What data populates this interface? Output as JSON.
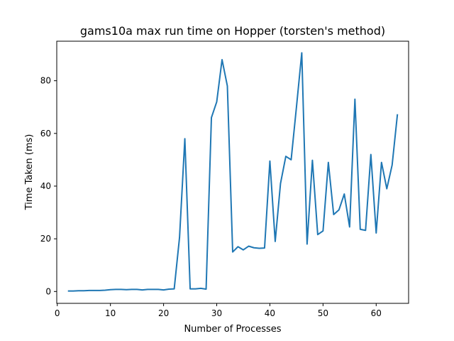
{
  "chart_data": {
    "type": "line",
    "title": "gams10a max run time on Hopper (torsten's method)",
    "xlabel": "Number of Processes",
    "ylabel": "Time Taken (ms)",
    "xlim": [
      -0.1,
      66.1
    ],
    "ylim": [
      -4.5,
      95.0
    ],
    "xticks": [
      0,
      10,
      20,
      30,
      40,
      50,
      60
    ],
    "yticks": [
      0,
      20,
      40,
      60,
      80
    ],
    "grid": false,
    "line_color": "#1f77b4",
    "series": [
      {
        "x": [
          2,
          3,
          4,
          5,
          6,
          7,
          8,
          9,
          10,
          11,
          12,
          13,
          14,
          15,
          16,
          17,
          18,
          19,
          20,
          21,
          22,
          23,
          24,
          25,
          26,
          27,
          28,
          29,
          30,
          31,
          32,
          33,
          34,
          35,
          36,
          37,
          38,
          39,
          40,
          41,
          42,
          43,
          44,
          45,
          46,
          47,
          48,
          49,
          50,
          51,
          52,
          53,
          54,
          55,
          56,
          57,
          58,
          59,
          60,
          61,
          62,
          63,
          64
        ],
        "values": [
          0.2,
          0.2,
          0.3,
          0.3,
          0.4,
          0.4,
          0.4,
          0.5,
          0.7,
          0.8,
          0.8,
          0.7,
          0.8,
          0.8,
          0.6,
          0.8,
          0.8,
          0.8,
          0.6,
          0.9,
          1.0,
          20.5,
          58.0,
          1.0,
          1.0,
          1.2,
          0.9,
          66.0,
          72.0,
          88.0,
          78.0,
          15.0,
          17.0,
          15.8,
          17.2,
          16.6,
          16.4,
          16.5,
          49.5,
          19.0,
          41.0,
          51.3,
          50.0,
          70.0,
          90.6,
          18.0,
          49.8,
          21.6,
          23.0,
          49.0,
          29.2,
          31.0,
          37.0,
          24.5,
          73.0,
          23.6,
          23.2,
          52.0,
          22.2,
          49.0,
          39.0,
          48.0,
          67.3
        ]
      }
    ]
  }
}
